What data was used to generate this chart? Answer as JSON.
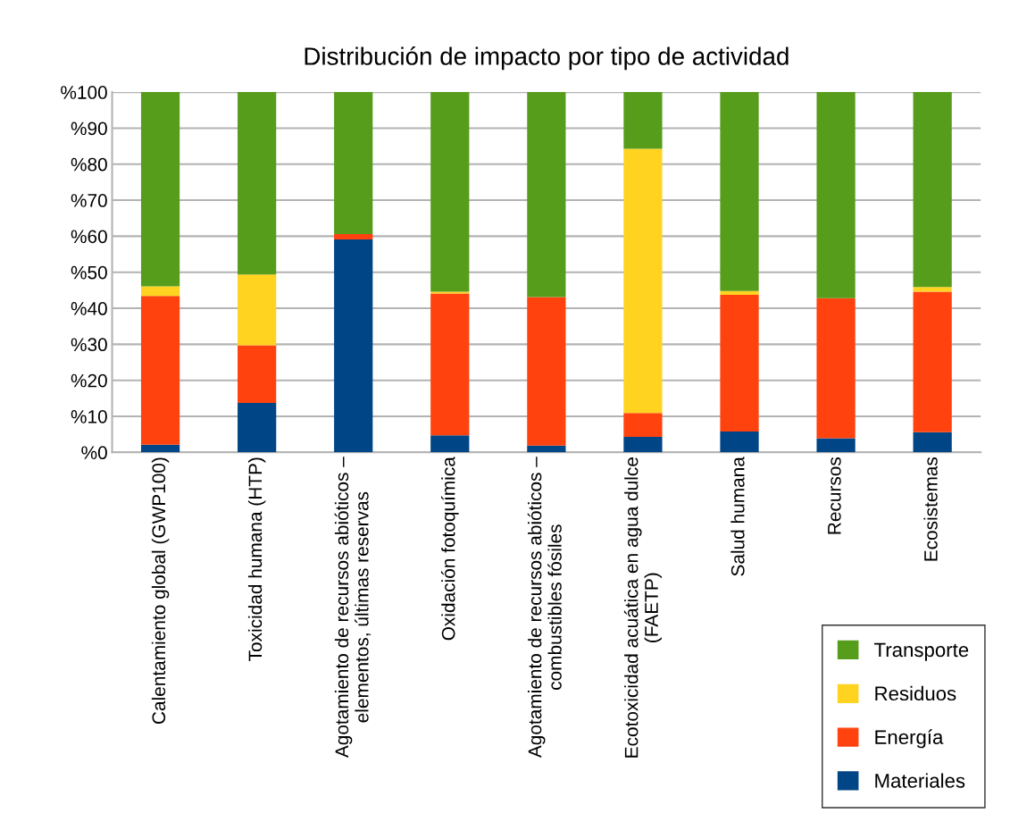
{
  "chart_data": {
    "type": "bar",
    "title": "Distribución de impacto por tipo de actividad",
    "categories": [
      "Calentamiento global (GWP100)",
      "Toxicidad humana (HTP)",
      "Agotamiento de recursos abióticos – elementos, últimas reservas",
      "Oxidación fotoquímica",
      "Agotamiento de recursos abióticos – combustibles fósiles",
      "Ecotoxicidad acuática en agua dulce (FAETP)",
      "Salud humana",
      "Recursos",
      "Ecosistemas"
    ],
    "stacked": true,
    "series": [
      {
        "name": "Materiales",
        "color": "#004586",
        "values": [
          2.1,
          13.7,
          59.1,
          4.7,
          1.9,
          4.3,
          5.8,
          3.9,
          5.6
        ]
      },
      {
        "name": "Energía",
        "color": "#ff420e",
        "values": [
          41.3,
          16.0,
          1.5,
          39.4,
          41.2,
          6.6,
          37.9,
          38.9,
          39.0
        ]
      },
      {
        "name": "Residuos",
        "color": "#ffd320",
        "values": [
          2.7,
          19.7,
          0,
          0.5,
          0,
          73.4,
          1.1,
          0,
          1.3
        ]
      },
      {
        "name": "Transporte",
        "color": "#579d1c",
        "values": [
          53.9,
          50.6,
          39.4,
          55.4,
          56.9,
          15.7,
          55.2,
          57.2,
          54.1
        ]
      }
    ],
    "ylim": [
      0,
      100
    ],
    "yticks": [
      {
        "value": 0,
        "label": "%0"
      },
      {
        "value": 10,
        "label": "%10"
      },
      {
        "value": 20,
        "label": "%20"
      },
      {
        "value": 30,
        "label": "%30"
      },
      {
        "value": 40,
        "label": "%40"
      },
      {
        "value": 50,
        "label": "%50"
      },
      {
        "value": 60,
        "label": "%60"
      },
      {
        "value": 70,
        "label": "%70"
      },
      {
        "value": 80,
        "label": "%80"
      },
      {
        "value": 90,
        "label": "%90"
      },
      {
        "value": 100,
        "label": "%100"
      }
    ],
    "grid": "y",
    "legend": "bottom right"
  }
}
